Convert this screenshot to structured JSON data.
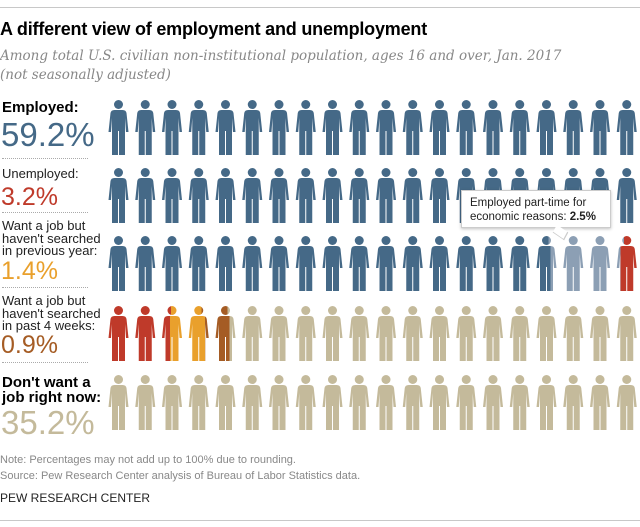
{
  "title": "A different view of employment and unemployment",
  "subtitle_line1": "Among total U.S. civilian non-institutional population, ages 16 and over, Jan. 2017",
  "subtitle_line2": "(not seasonally adjusted)",
  "labels": {
    "employed": {
      "text": "Employed:",
      "pct": "59.2%"
    },
    "unemployed": {
      "text": "Unemployed:",
      "pct": "3.2%"
    },
    "prev_year": {
      "line1": "Want a job but",
      "line2": "haven't searched",
      "line3": "in previous year:",
      "pct": "1.4%"
    },
    "past4": {
      "line1": "Want a job but",
      "line2": "haven't searched",
      "line3": "in past 4 weeks:",
      "pct": "0.9%"
    },
    "dont_want": {
      "line1": "Don't want a",
      "line2": "job right now:",
      "pct": "35.2%"
    }
  },
  "tooltip": {
    "text": "Employed part-time for",
    "text2": "economic reasons: ",
    "value": "2.5%"
  },
  "note": "Note: Percentages may not add up to 100% due to rounding.",
  "source": "Source: Pew Research Center analysis of Bureau of Labor Statistics data.",
  "org": "PEW RESEARCH CENTER",
  "chart_data": {
    "type": "pictograph",
    "total_icons": 100,
    "icons_per_row": 20,
    "series": [
      {
        "name": "Employed (excluding part-time for economic reasons)",
        "value": 56.7,
        "color": "#456987"
      },
      {
        "name": "Employed part-time for economic reasons",
        "value": 2.5,
        "color": "#8c9fb4"
      },
      {
        "name": "Unemployed",
        "value": 3.2,
        "color": "#bf3a2a"
      },
      {
        "name": "Want a job but haven't searched in previous year",
        "value": 1.4,
        "color": "#e9a02c"
      },
      {
        "name": "Want a job but haven't searched in past 4 weeks",
        "value": 0.9,
        "color": "#a55c24"
      },
      {
        "name": "Don't want a job right now",
        "value": 35.2,
        "color": "#c4ba9b"
      }
    ]
  }
}
